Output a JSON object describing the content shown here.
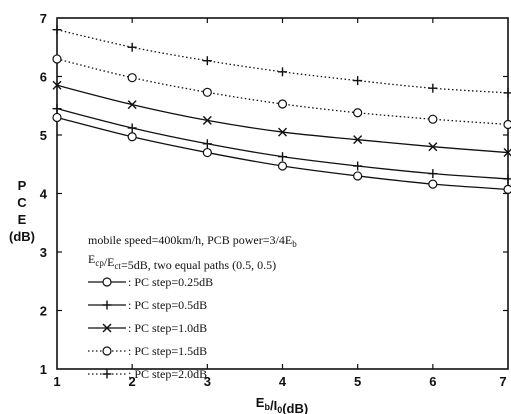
{
  "chart_data": {
    "type": "line",
    "xlabel": "Eb/I0(dB)",
    "ylabel_lines": [
      "P",
      "C",
      "E",
      "(dB)"
    ],
    "xlim": [
      1,
      7
    ],
    "ylim": [
      1,
      7
    ],
    "x_ticks": [
      "1",
      "2",
      "3",
      "4",
      "5",
      "6",
      "7"
    ],
    "y_ticks": [
      "1",
      "2",
      "3",
      "4",
      "5",
      "6",
      "7"
    ],
    "grid": false,
    "legend_position": "lower-left",
    "annotation_line1": "mobile speed=400km/h, PCB power=3/4Eb",
    "annotation_line2": "Ecp/Ect=5dB, two equal paths (0.5, 0.5)",
    "x": [
      1,
      2,
      3,
      4,
      5,
      6,
      7
    ],
    "series": [
      {
        "name": ": PC step=0.25dB",
        "marker": "o",
        "dash": "solid",
        "values": [
          5.3,
          4.97,
          4.7,
          4.47,
          4.3,
          4.16,
          4.07
        ]
      },
      {
        "name": ": PC step=0.5dB",
        "marker": "+",
        "dash": "solid",
        "values": [
          5.45,
          5.12,
          4.85,
          4.63,
          4.47,
          4.34,
          4.25
        ]
      },
      {
        "name": ": PC step=1.0dB",
        "marker": "x",
        "dash": "solid",
        "values": [
          5.85,
          5.52,
          5.25,
          5.05,
          4.92,
          4.8,
          4.7
        ]
      },
      {
        "name": ": PC step=1.5dB",
        "marker": "o",
        "dash": "dotted",
        "values": [
          6.3,
          5.98,
          5.73,
          5.53,
          5.38,
          5.27,
          5.18
        ]
      },
      {
        "name": ": PC step=2.0dB",
        "marker": "+",
        "dash": "dotted",
        "values": [
          6.8,
          6.5,
          6.27,
          6.08,
          5.93,
          5.8,
          5.72
        ]
      }
    ]
  }
}
